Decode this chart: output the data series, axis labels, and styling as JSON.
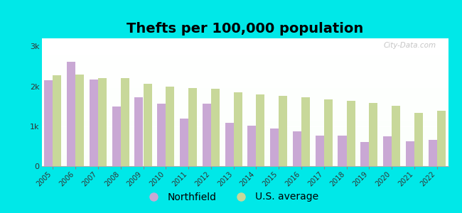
{
  "title": "Thefts per 100,000 population",
  "years": [
    2005,
    2006,
    2007,
    2008,
    2009,
    2010,
    2011,
    2012,
    2013,
    2014,
    2015,
    2016,
    2017,
    2018,
    2019,
    2020,
    2021,
    2022
  ],
  "northfield": [
    2150,
    2620,
    2170,
    1500,
    1720,
    1560,
    1200,
    1560,
    1080,
    1020,
    950,
    870,
    760,
    760,
    600,
    740,
    620,
    660
  ],
  "us_average": [
    2270,
    2300,
    2200,
    2200,
    2060,
    1990,
    1960,
    1930,
    1850,
    1790,
    1760,
    1730,
    1680,
    1640,
    1580,
    1520,
    1340,
    1390
  ],
  "northfield_color": "#c9a8d4",
  "us_average_color": "#c8d89a",
  "background_color": "#00e8e8",
  "ylabel_ticks": [
    "0",
    "1k",
    "2k",
    "3k"
  ],
  "ytick_values": [
    0,
    1000,
    2000,
    3000
  ],
  "ylim": [
    0,
    3200
  ],
  "title_fontsize": 14,
  "legend_fontsize": 10,
  "watermark": "City-Data.com"
}
